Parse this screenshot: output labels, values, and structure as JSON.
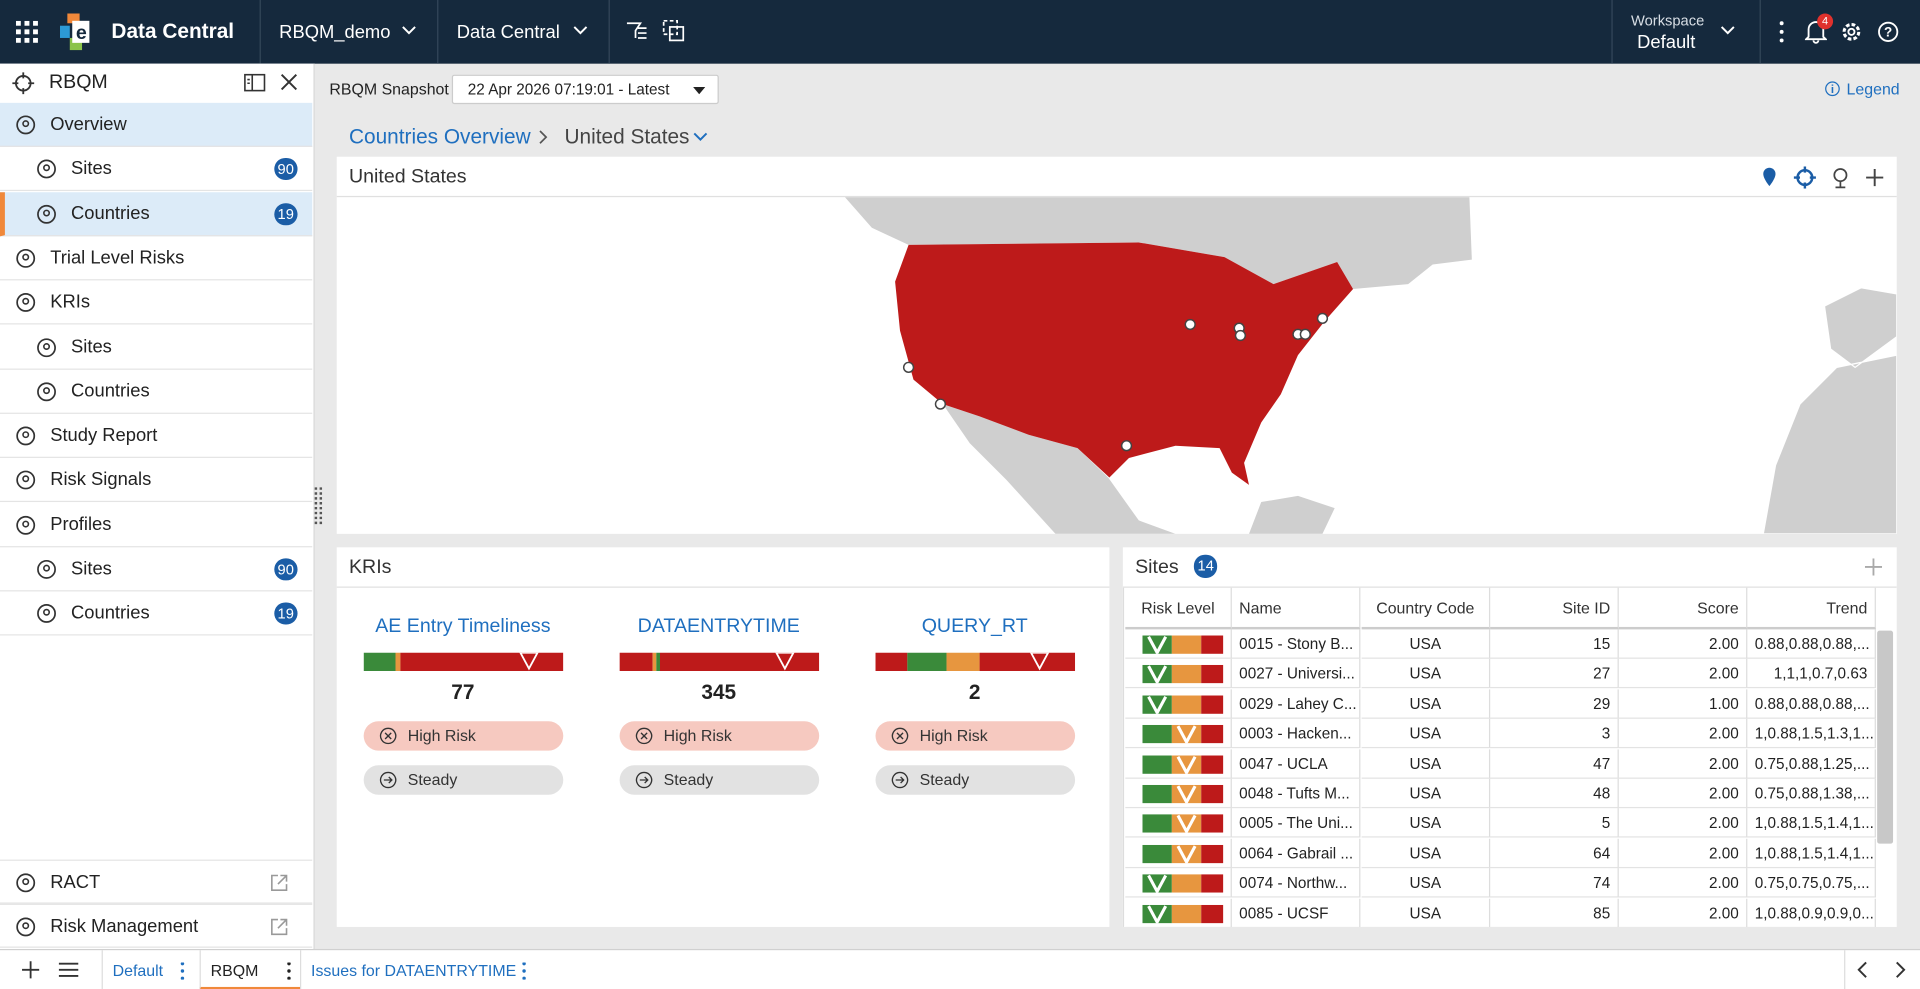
{
  "header": {
    "app_name": "Data Central",
    "study": "RBQM_demo",
    "module": "Data Central",
    "workspace_label": "Workspace",
    "workspace": "Default",
    "notifications": 4
  },
  "sidebar": {
    "title": "RBQM",
    "nav": [
      {
        "label": "Overview",
        "children": [
          {
            "label": "Sites",
            "count": 90
          },
          {
            "label": "Countries",
            "count": 19
          }
        ]
      },
      {
        "label": "Trial Level Risks"
      },
      {
        "label": "KRIs",
        "children": [
          {
            "label": "Sites"
          },
          {
            "label": "Countries"
          }
        ]
      },
      {
        "label": "Study Report"
      },
      {
        "label": "Risk Signals"
      },
      {
        "label": "Profiles",
        "children": [
          {
            "label": "Sites",
            "count": 90
          },
          {
            "label": "Countries",
            "count": 19
          }
        ]
      }
    ],
    "footer_links": [
      "RACT",
      "Risk Management"
    ]
  },
  "toolbar": {
    "snapshot_label": "RBQM Snapshot",
    "snapshot": "22 Apr 2026 07:19:01 - Latest",
    "legend": "Legend"
  },
  "breadcrumb": [
    "Countries Overview",
    "United States"
  ],
  "map": {
    "title": "United States"
  },
  "kris": {
    "title": "KRIs",
    "items": [
      {
        "name": "AE Entry Timeliness",
        "value": 77,
        "risk": "High Risk",
        "trend": "Steady"
      },
      {
        "name": "DATAENTRYTIME",
        "value": 345,
        "risk": "High Risk",
        "trend": "Steady"
      },
      {
        "name": "QUERY_RT",
        "value": 2,
        "risk": "High Risk",
        "trend": "Steady"
      }
    ]
  },
  "sites": {
    "title": "Sites",
    "count": 14,
    "columns": [
      "Risk Level",
      "Name",
      "Country Code",
      "Site ID",
      "Score",
      "Trend"
    ],
    "rows": [
      [
        "0015 - Stony B...",
        "USA",
        15,
        "2.00",
        "0.88,0.88,0.88,..."
      ],
      [
        "0027 - Universi...",
        "USA",
        27,
        "2.00",
        "1,1,1,0.7,0.63"
      ],
      [
        "0029 - Lahey C...",
        "USA",
        29,
        "1.00",
        "0.88,0.88,0.88,..."
      ],
      [
        "0003 - Hacken...",
        "USA",
        3,
        "2.00",
        "1,0.88,1.5,1.3,1..."
      ],
      [
        "0047 - UCLA",
        "USA",
        47,
        "2.00",
        "0.75,0.88,1.25,..."
      ],
      [
        "0048 - Tufts M...",
        "USA",
        48,
        "2.00",
        "0.75,0.88,1.38,..."
      ],
      [
        "0005 - The Uni...",
        "USA",
        5,
        "2.00",
        "1,0.88,1.5,1.4,1..."
      ],
      [
        "0064 - Gabrail ...",
        "USA",
        64,
        "2.00",
        "1,0.88,1.5,1.4,1..."
      ],
      [
        "0074 - Northw...",
        "USA",
        74,
        "2.00",
        "0.75,0.75,0.75,..."
      ],
      [
        "0085 - UCSF",
        "USA",
        85,
        "2.00",
        "1,0.88,0.9,0.9,0..."
      ]
    ]
  },
  "tabs": [
    "Default",
    "RBQM",
    "Issues for DATAENTRYTIME"
  ]
}
